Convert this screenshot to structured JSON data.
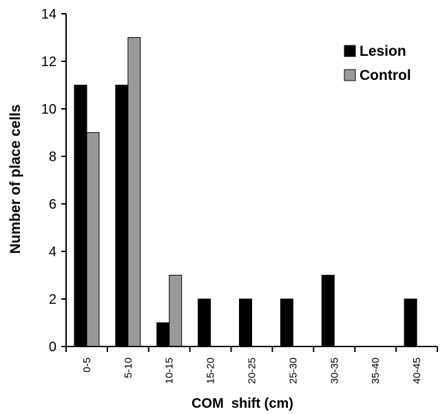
{
  "chart_data": {
    "type": "bar",
    "title": "",
    "xlabel": "COM  shift (cm)",
    "ylabel": "Number of place cells",
    "ylim": [
      0,
      14
    ],
    "yticks": [
      0,
      2,
      4,
      6,
      8,
      10,
      12,
      14
    ],
    "grid": false,
    "legend_position": "top-right",
    "categories": [
      "0-5",
      "5-10",
      "10-15",
      "15-20",
      "20-25",
      "25-30",
      "30-35",
      "35-40",
      "40-45"
    ],
    "series": [
      {
        "name": "Lesion",
        "color": "#000000",
        "values": [
          11,
          11,
          1,
          2,
          2,
          2,
          3,
          0,
          2
        ]
      },
      {
        "name": "Control",
        "color": "#999999",
        "values": [
          9,
          13,
          3,
          0,
          0,
          0,
          0,
          0,
          0
        ]
      }
    ]
  }
}
